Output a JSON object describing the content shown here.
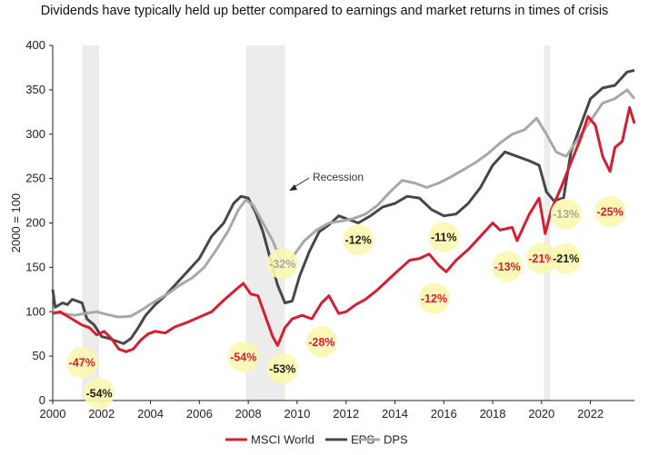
{
  "chart_data": {
    "type": "line",
    "title": "Dividends have typically held up better compared to earnings and market returns in times of crisis",
    "ylabel": "2000 = 100",
    "xlabel": "",
    "xlim": [
      2000,
      2023.8
    ],
    "ylim": [
      0,
      400
    ],
    "x_ticks": [
      2000,
      2002,
      2004,
      2006,
      2008,
      2010,
      2012,
      2014,
      2016,
      2018,
      2020,
      2022
    ],
    "y_ticks": [
      0,
      50,
      100,
      150,
      200,
      250,
      300,
      350,
      400
    ],
    "grid": false,
    "legend_position": "bottom",
    "recession_periods": [
      [
        2001.2,
        2001.9
      ],
      [
        2007.9,
        2009.5
      ],
      [
        2020.1,
        2020.35
      ]
    ],
    "recession_label": "Recession",
    "series": [
      {
        "name": "MSCI World",
        "color": "#d51e2f",
        "points": [
          [
            2000,
            98
          ],
          [
            2000.3,
            100
          ],
          [
            2000.6,
            95
          ],
          [
            2000.9,
            90
          ],
          [
            2001.2,
            85
          ],
          [
            2001.5,
            82
          ],
          [
            2001.8,
            74
          ],
          [
            2002.1,
            78
          ],
          [
            2002.4,
            70
          ],
          [
            2002.7,
            58
          ],
          [
            2003.0,
            55
          ],
          [
            2003.3,
            58
          ],
          [
            2003.6,
            68
          ],
          [
            2003.9,
            75
          ],
          [
            2004.2,
            78
          ],
          [
            2004.6,
            76
          ],
          [
            2005.0,
            83
          ],
          [
            2005.5,
            88
          ],
          [
            2006.0,
            94
          ],
          [
            2006.5,
            100
          ],
          [
            2007.0,
            113
          ],
          [
            2007.5,
            125
          ],
          [
            2007.8,
            132
          ],
          [
            2008.1,
            120
          ],
          [
            2008.4,
            118
          ],
          [
            2008.7,
            95
          ],
          [
            2009.0,
            72
          ],
          [
            2009.2,
            62
          ],
          [
            2009.5,
            82
          ],
          [
            2009.8,
            92
          ],
          [
            2010.2,
            96
          ],
          [
            2010.6,
            92
          ],
          [
            2011.0,
            110
          ],
          [
            2011.3,
            118
          ],
          [
            2011.7,
            98
          ],
          [
            2012.0,
            100
          ],
          [
            2012.4,
            108
          ],
          [
            2012.8,
            114
          ],
          [
            2013.3,
            125
          ],
          [
            2013.8,
            138
          ],
          [
            2014.2,
            148
          ],
          [
            2014.6,
            158
          ],
          [
            2015.0,
            160
          ],
          [
            2015.4,
            165
          ],
          [
            2015.8,
            152
          ],
          [
            2016.1,
            145
          ],
          [
            2016.5,
            158
          ],
          [
            2017.0,
            170
          ],
          [
            2017.5,
            185
          ],
          [
            2018.0,
            200
          ],
          [
            2018.3,
            192
          ],
          [
            2018.8,
            195
          ],
          [
            2019.0,
            180
          ],
          [
            2019.5,
            210
          ],
          [
            2019.9,
            228
          ],
          [
            2020.15,
            188
          ],
          [
            2020.4,
            215
          ],
          [
            2020.8,
            240
          ],
          [
            2021.2,
            268
          ],
          [
            2021.6,
            295
          ],
          [
            2021.9,
            320
          ],
          [
            2022.2,
            310
          ],
          [
            2022.5,
            275
          ],
          [
            2022.8,
            258
          ],
          [
            2023.0,
            285
          ],
          [
            2023.3,
            292
          ],
          [
            2023.6,
            330
          ],
          [
            2023.8,
            312
          ]
        ]
      },
      {
        "name": "EPS",
        "color": "#474747",
        "points": [
          [
            2000,
            125
          ],
          [
            2000.1,
            105
          ],
          [
            2000.4,
            110
          ],
          [
            2000.6,
            108
          ],
          [
            2000.8,
            114
          ],
          [
            2001.2,
            110
          ],
          [
            2001.4,
            92
          ],
          [
            2001.7,
            85
          ],
          [
            2002.0,
            72
          ],
          [
            2002.3,
            70
          ],
          [
            2002.6,
            67
          ],
          [
            2002.9,
            64
          ],
          [
            2003.2,
            70
          ],
          [
            2003.5,
            82
          ],
          [
            2003.8,
            96
          ],
          [
            2004.2,
            108
          ],
          [
            2004.6,
            118
          ],
          [
            2005.0,
            130
          ],
          [
            2005.5,
            145
          ],
          [
            2006.0,
            160
          ],
          [
            2006.5,
            185
          ],
          [
            2007.0,
            200
          ],
          [
            2007.4,
            222
          ],
          [
            2007.7,
            230
          ],
          [
            2008.0,
            228
          ],
          [
            2008.3,
            212
          ],
          [
            2008.6,
            190
          ],
          [
            2008.9,
            160
          ],
          [
            2009.2,
            130
          ],
          [
            2009.5,
            110
          ],
          [
            2009.8,
            112
          ],
          [
            2010.1,
            140
          ],
          [
            2010.5,
            168
          ],
          [
            2010.9,
            190
          ],
          [
            2011.3,
            198
          ],
          [
            2011.7,
            208
          ],
          [
            2012.0,
            205
          ],
          [
            2012.5,
            200
          ],
          [
            2013.0,
            208
          ],
          [
            2013.5,
            218
          ],
          [
            2014.0,
            222
          ],
          [
            2014.5,
            230
          ],
          [
            2015.0,
            228
          ],
          [
            2015.5,
            215
          ],
          [
            2016.0,
            208
          ],
          [
            2016.5,
            210
          ],
          [
            2017.0,
            222
          ],
          [
            2017.5,
            240
          ],
          [
            2018.0,
            265
          ],
          [
            2018.5,
            280
          ],
          [
            2019.0,
            275
          ],
          [
            2019.5,
            270
          ],
          [
            2019.9,
            265
          ],
          [
            2020.2,
            235
          ],
          [
            2020.5,
            225
          ],
          [
            2020.9,
            228
          ],
          [
            2021.2,
            280
          ],
          [
            2021.6,
            310
          ],
          [
            2022.0,
            340
          ],
          [
            2022.5,
            352
          ],
          [
            2023.0,
            355
          ],
          [
            2023.5,
            370
          ],
          [
            2023.8,
            372
          ]
        ]
      },
      {
        "name": "DPS",
        "color": "#a8a8a8",
        "points": [
          [
            2000,
            100
          ],
          [
            2000.4,
            98
          ],
          [
            2000.9,
            96
          ],
          [
            2001.3,
            98
          ],
          [
            2001.8,
            100
          ],
          [
            2002.2,
            97
          ],
          [
            2002.7,
            94
          ],
          [
            2003.2,
            95
          ],
          [
            2003.7,
            103
          ],
          [
            2004.2,
            112
          ],
          [
            2004.7,
            120
          ],
          [
            2005.2,
            130
          ],
          [
            2005.7,
            138
          ],
          [
            2006.2,
            150
          ],
          [
            2006.7,
            170
          ],
          [
            2007.2,
            192
          ],
          [
            2007.6,
            215
          ],
          [
            2007.9,
            226
          ],
          [
            2008.2,
            220
          ],
          [
            2008.6,
            200
          ],
          [
            2009.0,
            180
          ],
          [
            2009.3,
            160
          ],
          [
            2009.6,
            155
          ],
          [
            2009.9,
            165
          ],
          [
            2010.3,
            180
          ],
          [
            2010.8,
            192
          ],
          [
            2011.3,
            200
          ],
          [
            2011.8,
            202
          ],
          [
            2012.3,
            205
          ],
          [
            2012.8,
            210
          ],
          [
            2013.3,
            220
          ],
          [
            2013.8,
            235
          ],
          [
            2014.3,
            248
          ],
          [
            2014.8,
            245
          ],
          [
            2015.3,
            240
          ],
          [
            2015.8,
            245
          ],
          [
            2016.3,
            252
          ],
          [
            2016.8,
            260
          ],
          [
            2017.3,
            268
          ],
          [
            2017.8,
            278
          ],
          [
            2018.3,
            290
          ],
          [
            2018.8,
            300
          ],
          [
            2019.3,
            305
          ],
          [
            2019.8,
            318
          ],
          [
            2020.2,
            300
          ],
          [
            2020.6,
            280
          ],
          [
            2021.0,
            275
          ],
          [
            2021.5,
            295
          ],
          [
            2022.0,
            315
          ],
          [
            2022.5,
            335
          ],
          [
            2023.0,
            340
          ],
          [
            2023.5,
            350
          ],
          [
            2023.8,
            340
          ]
        ]
      }
    ],
    "annotations": [
      {
        "label": "-47%",
        "x": 2001.2,
        "y": 43,
        "color": "#d51e2f"
      },
      {
        "label": "-54%",
        "x": 2001.9,
        "y": 8,
        "color": "#222222"
      },
      {
        "label": "-54%",
        "x": 2007.8,
        "y": 49,
        "color": "#d51e2f"
      },
      {
        "label": "-53%",
        "x": 2009.4,
        "y": 36,
        "color": "#222222"
      },
      {
        "label": "-32%",
        "x": 2009.4,
        "y": 154,
        "color": "#a8a8a8"
      },
      {
        "label": "-28%",
        "x": 2011.0,
        "y": 66,
        "color": "#d51e2f"
      },
      {
        "label": "-12%",
        "x": 2012.5,
        "y": 181,
        "color": "#222222"
      },
      {
        "label": "-12%",
        "x": 2015.6,
        "y": 115,
        "color": "#d51e2f"
      },
      {
        "label": "-11%",
        "x": 2016.0,
        "y": 184,
        "color": "#222222"
      },
      {
        "label": "-13%",
        "x": 2018.6,
        "y": 151,
        "color": "#d51e2f"
      },
      {
        "label": "-21%",
        "x": 2020.0,
        "y": 160,
        "color": "#d51e2f"
      },
      {
        "label": "-21%",
        "x": 2021.0,
        "y": 160,
        "color": "#222222"
      },
      {
        "label": "-13%",
        "x": 2021.0,
        "y": 210,
        "color": "#a8a8a8"
      },
      {
        "label": "-25%",
        "x": 2022.8,
        "y": 213,
        "color": "#d51e2f"
      }
    ]
  }
}
